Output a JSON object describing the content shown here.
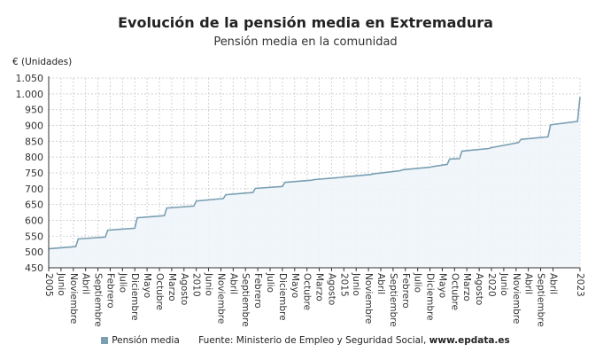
{
  "chart_data": {
    "type": "area",
    "title": "Evolución de la pensión media en Extremadura",
    "subtitle": "Pensión media en la comunidad",
    "ylabel": "€ (Unidades)",
    "ylim": [
      450,
      1050
    ],
    "yticks": [
      450,
      500,
      550,
      600,
      650,
      700,
      750,
      800,
      850,
      900,
      950,
      1000,
      1050
    ],
    "ytick_labels": [
      "450",
      "500",
      "550",
      "600",
      "650",
      "700",
      "750",
      "800",
      "850",
      "900",
      "950",
      "1.000",
      "1.050"
    ],
    "xlim": [
      "2005-01",
      "2023-01"
    ],
    "xtick_labels": [
      "2005",
      "Junio",
      "Noviembre",
      "Abril",
      "Septiembre",
      "Febrero",
      "Julio",
      "Diciembre",
      "Mayo",
      "Octubre",
      "Marzo",
      "Agosto",
      "2010",
      "Junio",
      "Noviembre",
      "Abril",
      "Septiembre",
      "Febrero",
      "Julio",
      "Diciembre",
      "Mayo",
      "Octubre",
      "Marzo",
      "Agosto",
      "2015",
      "Junio",
      "Noviembre",
      "Abril",
      "Septiembre",
      "Febrero",
      "Julio",
      "Diciembre",
      "Mayo",
      "Octubre",
      "Marzo",
      "Agosto",
      "2020",
      "Junio",
      "Noviembre",
      "Abril",
      "Septiembre",
      "Abril",
      "2023"
    ],
    "grid": true,
    "legend_position": "bottom",
    "series": [
      {
        "name": "Pensión media",
        "color": "#7a9fb3",
        "fill": "#eef5fa",
        "points": [
          [
            "2005-01",
            510
          ],
          [
            "2005-12",
            517
          ],
          [
            "2006-01",
            541
          ],
          [
            "2006-12",
            547
          ],
          [
            "2007-01",
            569
          ],
          [
            "2007-12",
            575
          ],
          [
            "2008-01",
            608
          ],
          [
            "2008-12",
            615
          ],
          [
            "2009-01",
            639
          ],
          [
            "2009-12",
            645
          ],
          [
            "2010-01",
            661
          ],
          [
            "2010-12",
            669
          ],
          [
            "2011-01",
            681
          ],
          [
            "2011-12",
            688
          ],
          [
            "2012-01",
            701
          ],
          [
            "2012-12",
            707
          ],
          [
            "2013-01",
            720
          ],
          [
            "2013-12",
            727
          ],
          [
            "2014-01",
            729
          ],
          [
            "2014-12",
            736
          ],
          [
            "2015-01",
            737
          ],
          [
            "2015-12",
            745
          ],
          [
            "2016-01",
            747
          ],
          [
            "2016-12",
            757
          ],
          [
            "2017-01",
            760
          ],
          [
            "2017-12",
            768
          ],
          [
            "2018-01",
            770
          ],
          [
            "2018-07",
            777
          ],
          [
            "2018-08",
            794
          ],
          [
            "2018-12",
            795
          ],
          [
            "2019-01",
            819
          ],
          [
            "2019-12",
            827
          ],
          [
            "2020-01",
            830
          ],
          [
            "2020-12",
            846
          ],
          [
            "2021-01",
            856
          ],
          [
            "2021-12",
            864
          ],
          [
            "2022-01",
            902
          ],
          [
            "2022-12",
            913
          ],
          [
            "2023-01",
            990
          ]
        ]
      }
    ]
  },
  "legend": {
    "series_label": "Pensión media",
    "source_prefix": "Fuente: Ministerio de Empleo y Seguridad Social, ",
    "source_site": "www.epdata.es"
  }
}
